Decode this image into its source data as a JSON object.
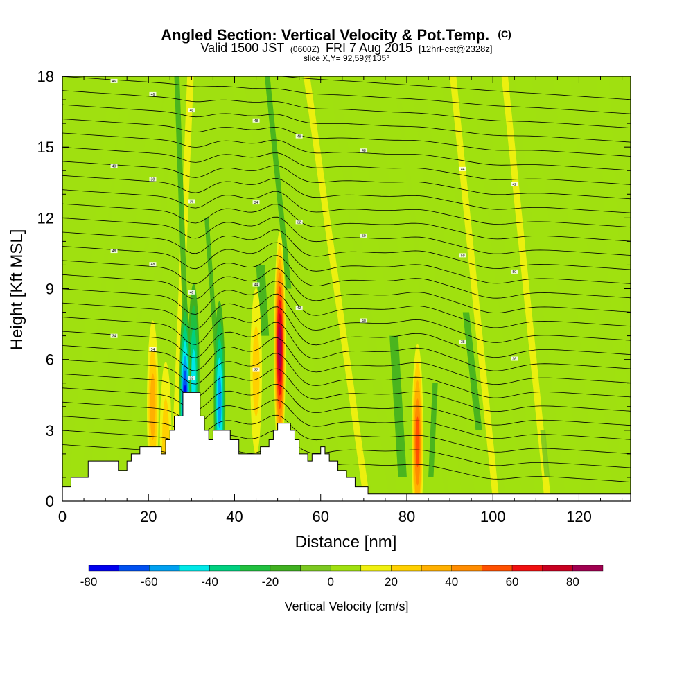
{
  "chart_data": {
    "type": "heatmap",
    "title": "Angled Section: Vertical Velocity & Pot.Temp.",
    "title_unit": "(C)",
    "subtitle": {
      "valid": "Valid 1500 JST",
      "utc": "(0600Z)",
      "date": "FRI 7 Aug 2015",
      "forecast": "[12hrFcst@2328z]"
    },
    "slice_info": "slice X,Y= 92,59@135°",
    "xlabel": "Distance [nm]",
    "ylabel": "Height [Kft MSL]",
    "xlim": [
      0,
      132
    ],
    "ylim": [
      0,
      18
    ],
    "xticks": [
      0,
      20,
      40,
      60,
      80,
      100,
      120
    ],
    "xtick_labels": [
      "0",
      "20",
      "40",
      "60",
      "80",
      "100",
      "120"
    ],
    "yticks": [
      0,
      3,
      6,
      9,
      12,
      15,
      18
    ],
    "ytick_labels": [
      "0",
      "3",
      "6",
      "9",
      "12",
      "15",
      "18"
    ],
    "colorbar": {
      "label": "Vertical Velocity [cm/s]",
      "bounds": [
        -80,
        -70,
        -60,
        -50,
        -40,
        -30,
        -20,
        -10,
        0,
        10,
        20,
        30,
        40,
        50,
        60,
        70,
        80,
        90
      ],
      "colors": [
        "#0000ee",
        "#0050f0",
        "#00a0f0",
        "#00e8e8",
        "#00d080",
        "#20c040",
        "#40b020",
        "#7cc820",
        "#a0e010",
        "#f0f010",
        "#ffd000",
        "#ffb000",
        "#ff8c00",
        "#ff5000",
        "#f01010",
        "#c80020",
        "#a00050",
        "#600080"
      ],
      "tick_values": [
        -80,
        -60,
        -40,
        -20,
        0,
        20,
        40,
        60,
        80
      ],
      "tick_labels": [
        "-80",
        "-60",
        "-40",
        "-20",
        "0",
        "20",
        "40",
        "60",
        "80"
      ]
    },
    "terrain_profile": [
      [
        0,
        0.6
      ],
      [
        2,
        1
      ],
      [
        6,
        1.7
      ],
      [
        10,
        1.7
      ],
      [
        13,
        1.3
      ],
      [
        15,
        1.7
      ],
      [
        16,
        2
      ],
      [
        18,
        2.3
      ],
      [
        22,
        2.3
      ],
      [
        23,
        2
      ],
      [
        24,
        2.6
      ],
      [
        25,
        3
      ],
      [
        26,
        3.6
      ],
      [
        28,
        4.6
      ],
      [
        31,
        4.6
      ],
      [
        32,
        3.6
      ],
      [
        33,
        3
      ],
      [
        34,
        2.6
      ],
      [
        35,
        3
      ],
      [
        38,
        3
      ],
      [
        39,
        2.6
      ],
      [
        41,
        2
      ],
      [
        45,
        2
      ],
      [
        46,
        2.3
      ],
      [
        48,
        2.6
      ],
      [
        49,
        3
      ],
      [
        50,
        3.3
      ],
      [
        52,
        3.3
      ],
      [
        53,
        3
      ],
      [
        54,
        2.6
      ],
      [
        55,
        2
      ],
      [
        57,
        1.7
      ],
      [
        58,
        2
      ],
      [
        60,
        2.3
      ],
      [
        61,
        2
      ],
      [
        62,
        1.7
      ],
      [
        64,
        1.3
      ],
      [
        66,
        1
      ],
      [
        68,
        0.6
      ],
      [
        71,
        0.3
      ],
      [
        132,
        0.3
      ]
    ],
    "updraft_cores": [
      {
        "x": 50.5,
        "y": 6.5,
        "w": 80
      },
      {
        "x": 82.5,
        "y": 2.5,
        "w": 50
      },
      {
        "x": 21,
        "y": 4,
        "w": 30
      },
      {
        "x": 45,
        "y": 5.5,
        "w": 25
      },
      {
        "x": 24,
        "y": 2.5,
        "w": 20
      }
    ],
    "downdraft_cores": [
      {
        "x": 36.5,
        "y": 4.2,
        "w": -55
      },
      {
        "x": 30.5,
        "y": 5.2,
        "w": -45
      },
      {
        "x": 28.5,
        "y": 4.0,
        "w": -70
      }
    ],
    "isentrope_labels": [
      "46",
      "46",
      "46",
      "48",
      "49",
      "48",
      "44",
      "42",
      "40",
      "38",
      "36",
      "34",
      "32",
      "50",
      "50",
      "50",
      "48",
      "48",
      "46",
      "44",
      "42",
      "40",
      "38",
      "36",
      "34",
      "34",
      "32",
      "32"
    ]
  }
}
